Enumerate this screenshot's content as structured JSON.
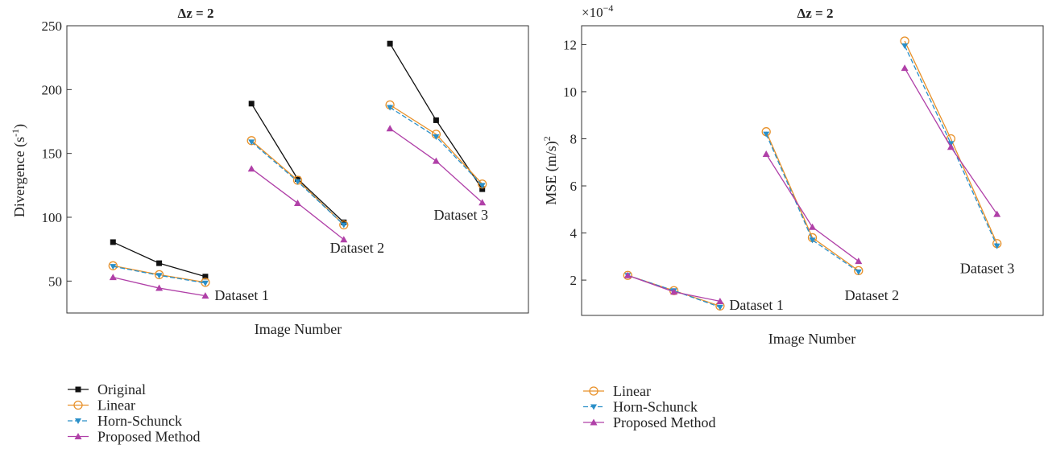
{
  "colors": {
    "Original": "#111111",
    "Linear": "#e8912a",
    "Horn-Schunck": "#2a8fc8",
    "Proposed Method": "#b040a8"
  },
  "chart_data": [
    {
      "type": "line",
      "title": "Δz = 2",
      "xlabel": "Image Number",
      "ylabel": "Divergence (s⁻¹)",
      "ylabel_main": "Divergence (s",
      "ylabel_sup": "-1",
      "ylabel_close": ")",
      "ylim": [
        25,
        250
      ],
      "yticks": [
        50,
        100,
        150,
        200,
        250
      ],
      "xlim": [
        0,
        10
      ],
      "grid": false,
      "legend": "below",
      "series": [
        {
          "name": "Original",
          "marker": "square",
          "dashed": false,
          "segments": [
            {
              "x": [
                1,
                2,
                3
              ],
              "y": [
                80.5,
                64,
                53.5
              ]
            },
            {
              "x": [
                4,
                5,
                6
              ],
              "y": [
                189,
                130,
                96
              ]
            },
            {
              "x": [
                7,
                8,
                9
              ],
              "y": [
                236,
                176,
                122
              ]
            }
          ]
        },
        {
          "name": "Linear",
          "marker": "circle",
          "dashed": false,
          "segments": [
            {
              "x": [
                1,
                2,
                3
              ],
              "y": [
                62,
                55,
                49
              ]
            },
            {
              "x": [
                4,
                5,
                6
              ],
              "y": [
                160,
                129,
                94
              ]
            },
            {
              "x": [
                7,
                8,
                9
              ],
              "y": [
                188,
                165,
                126
              ]
            }
          ]
        },
        {
          "name": "Horn-Schunck",
          "marker": "triangle-down",
          "dashed": true,
          "segments": [
            {
              "x": [
                1,
                2,
                3
              ],
              "y": [
                61.5,
                54.5,
                48.5
              ]
            },
            {
              "x": [
                4,
                5,
                6
              ],
              "y": [
                159,
                128,
                94
              ]
            },
            {
              "x": [
                7,
                8,
                9
              ],
              "y": [
                186,
                163,
                125
              ]
            }
          ]
        },
        {
          "name": "Proposed Method",
          "marker": "triangle-up",
          "dashed": false,
          "segments": [
            {
              "x": [
                1,
                2,
                3
              ],
              "y": [
                53,
                44.5,
                38.5
              ]
            },
            {
              "x": [
                4,
                5,
                6
              ],
              "y": [
                138,
                111,
                82.5
              ]
            },
            {
              "x": [
                7,
                8,
                9
              ],
              "y": [
                169.5,
                144,
                111.5
              ]
            }
          ]
        }
      ],
      "annotations": [
        {
          "text": "Dataset 1",
          "x": 3.2,
          "y": 39
        },
        {
          "text": "Dataset 2",
          "x": 5.7,
          "y": 76
        },
        {
          "text": "Dataset 3",
          "x": 7.95,
          "y": 102
        }
      ]
    },
    {
      "type": "line",
      "title": "Δz = 2",
      "xlabel": "Image Number",
      "ylabel": "MSE (m/s)²",
      "ylabel_main": "MSE (m/s)",
      "ylabel_sup": "2",
      "exponent_label": "×10",
      "exponent_sup": "−4",
      "ylim": [
        0.5,
        12.8
      ],
      "yticks": [
        2,
        4,
        6,
        8,
        10,
        12
      ],
      "xlim": [
        0,
        10
      ],
      "grid": false,
      "legend": "below",
      "series": [
        {
          "name": "Linear",
          "marker": "circle",
          "dashed": false,
          "segments": [
            {
              "x": [
                1,
                2,
                3
              ],
              "y": [
                2.2,
                1.55,
                0.9
              ]
            },
            {
              "x": [
                4,
                5,
                6
              ],
              "y": [
                8.3,
                3.8,
                2.4
              ]
            },
            {
              "x": [
                7,
                8,
                9
              ],
              "y": [
                12.15,
                8.0,
                3.55
              ]
            }
          ]
        },
        {
          "name": "Horn-Schunck",
          "marker": "triangle-down",
          "dashed": true,
          "segments": [
            {
              "x": [
                1,
                2,
                3
              ],
              "y": [
                2.2,
                1.55,
                0.85
              ]
            },
            {
              "x": [
                4,
                5,
                6
              ],
              "y": [
                8.2,
                3.7,
                2.35
              ]
            },
            {
              "x": [
                7,
                8,
                9
              ],
              "y": [
                11.95,
                7.8,
                3.45
              ]
            }
          ]
        },
        {
          "name": "Proposed Method",
          "marker": "triangle-up",
          "dashed": false,
          "segments": [
            {
              "x": [
                1,
                2,
                3
              ],
              "y": [
                2.2,
                1.5,
                1.1
              ]
            },
            {
              "x": [
                4,
                5,
                6
              ],
              "y": [
                7.35,
                4.25,
                2.8
              ]
            },
            {
              "x": [
                7,
                8,
                9
              ],
              "y": [
                11.0,
                7.65,
                4.8
              ]
            }
          ]
        }
      ],
      "annotations": [
        {
          "text": "Dataset 1",
          "x": 3.2,
          "y": 0.95
        },
        {
          "text": "Dataset 2",
          "x": 5.7,
          "y": 1.35
        },
        {
          "text": "Dataset 3",
          "x": 8.2,
          "y": 2.5
        }
      ]
    }
  ],
  "legend_left": [
    "Original",
    "Linear",
    "Horn-Schunck",
    "Proposed Method"
  ],
  "legend_right": [
    "Linear",
    "Horn-Schunck",
    "Proposed Method"
  ]
}
